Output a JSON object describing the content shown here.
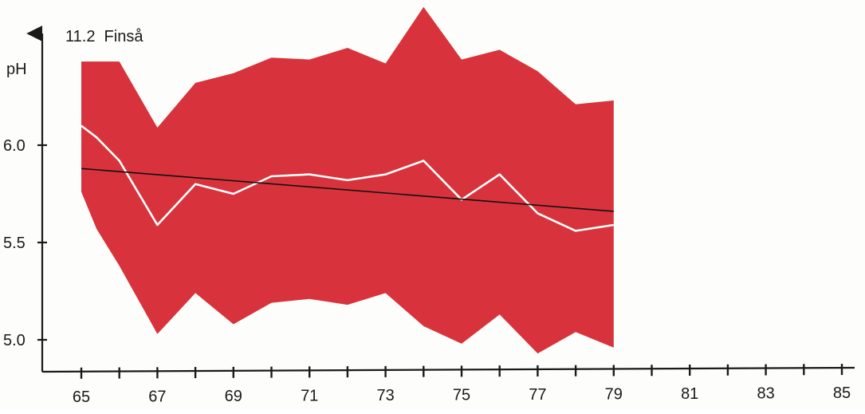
{
  "chart_data": {
    "type": "area",
    "title": "11.2  Finså",
    "ylabel": "pH",
    "xlabel": "",
    "x_ticks": [
      65,
      66,
      67,
      68,
      69,
      70,
      71,
      72,
      73,
      74,
      75,
      76,
      77,
      78,
      79,
      80,
      81,
      82,
      83,
      84,
      85
    ],
    "x_tick_labels": [
      "65",
      "67",
      "69",
      "71",
      "73",
      "75",
      "77",
      "79",
      "81",
      "83",
      "85"
    ],
    "y_tick_labels": [
      "5.0",
      "5.5",
      "6.0"
    ],
    "y_ticks": [
      5.0,
      5.5,
      6.0
    ],
    "xlim": [
      64.6,
      85
    ],
    "ylim": [
      4.86,
      6.56
    ],
    "grid": false,
    "legend": "none",
    "x": [
      65,
      65.4,
      66,
      67,
      68,
      69,
      70,
      71,
      72,
      73,
      74,
      75,
      76,
      77,
      78,
      79
    ],
    "series": [
      {
        "role": "range_max",
        "color": "#d8333c",
        "values": [
          6.43,
          6.43,
          6.43,
          6.09,
          6.32,
          6.37,
          6.45,
          6.44,
          6.5,
          6.42,
          6.71,
          6.44,
          6.49,
          6.38,
          6.21,
          6.23
        ]
      },
      {
        "role": "range_min",
        "color": "#d8333c",
        "values": [
          5.76,
          5.57,
          5.38,
          5.03,
          5.24,
          5.08,
          5.19,
          5.21,
          5.18,
          5.24,
          5.07,
          4.98,
          5.13,
          4.93,
          5.04,
          4.96
        ]
      },
      {
        "role": "mean",
        "color": "#ffffff",
        "values": [
          6.1,
          6.04,
          5.92,
          5.59,
          5.8,
          5.75,
          5.84,
          5.85,
          5.82,
          5.85,
          5.92,
          5.72,
          5.85,
          5.65,
          5.56,
          5.59
        ]
      },
      {
        "role": "trend",
        "color": "#111111",
        "x": [
          65,
          79
        ],
        "values": [
          5.88,
          5.66
        ]
      }
    ]
  }
}
